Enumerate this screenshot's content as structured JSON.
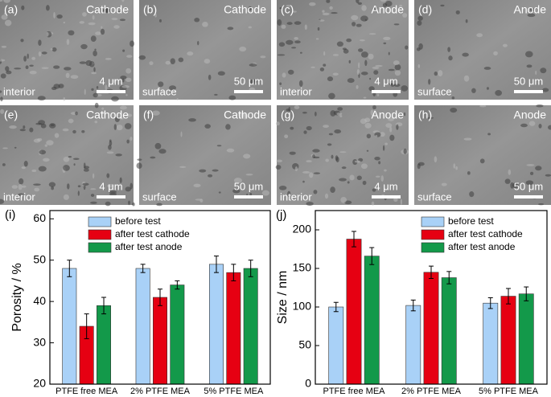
{
  "panels": [
    {
      "label": "(a)",
      "title": "Cathode",
      "location": "interior",
      "scale": "4 μm"
    },
    {
      "label": "(b)",
      "title": "Cathode",
      "location": "surface",
      "scale": "50 μm"
    },
    {
      "label": "(c)",
      "title": "Anode",
      "location": "interior",
      "scale": "4 μm"
    },
    {
      "label": "(d)",
      "title": "Anode",
      "location": "surface",
      "scale": "50 μm"
    },
    {
      "label": "(e)",
      "title": "Cathode",
      "location": "interior",
      "scale": "4 μm"
    },
    {
      "label": "(f)",
      "title": "Cathode",
      "location": "surface",
      "scale": "50 μm"
    },
    {
      "label": "(g)",
      "title": "Anode",
      "location": "interior",
      "scale": "4 μm"
    },
    {
      "label": "(h)",
      "title": "Anode",
      "location": "surface",
      "scale": "50 μm"
    }
  ],
  "chart_data": [
    {
      "type": "bar",
      "label": "(i)",
      "ylabel": "Porosity / %",
      "categories": [
        "PTFE free MEA",
        "2% PTFE MEA",
        "5% PTFE MEA"
      ],
      "series": [
        {
          "name": "before test",
          "color": "#a9d1f7",
          "values": [
            48,
            48,
            49
          ],
          "errors": [
            2,
            1,
            2
          ]
        },
        {
          "name": "after test cathode",
          "color": "#e60012",
          "values": [
            34,
            41,
            47
          ],
          "errors": [
            3,
            2,
            2
          ]
        },
        {
          "name": "after test anode",
          "color": "#13994a",
          "values": [
            39,
            44,
            48
          ],
          "errors": [
            2,
            1,
            2
          ]
        }
      ],
      "ylim": [
        20,
        62
      ],
      "yticks": [
        20,
        30,
        40,
        50,
        60
      ]
    },
    {
      "type": "bar",
      "label": "(j)",
      "ylabel": "Size / nm",
      "categories": [
        "PTFE free MEA",
        "2% PTFE MEA",
        "5% PTFE MEA"
      ],
      "series": [
        {
          "name": "before test",
          "color": "#a9d1f7",
          "values": [
            100,
            102,
            105
          ],
          "errors": [
            6,
            7,
            7
          ]
        },
        {
          "name": "after test cathode",
          "color": "#e60012",
          "values": [
            188,
            145,
            114
          ],
          "errors": [
            10,
            8,
            10
          ]
        },
        {
          "name": "after test anode",
          "color": "#13994a",
          "values": [
            166,
            138,
            117
          ],
          "errors": [
            11,
            8,
            9
          ]
        }
      ],
      "ylim": [
        0,
        225
      ],
      "yticks": [
        0,
        50,
        100,
        150,
        200
      ]
    }
  ]
}
